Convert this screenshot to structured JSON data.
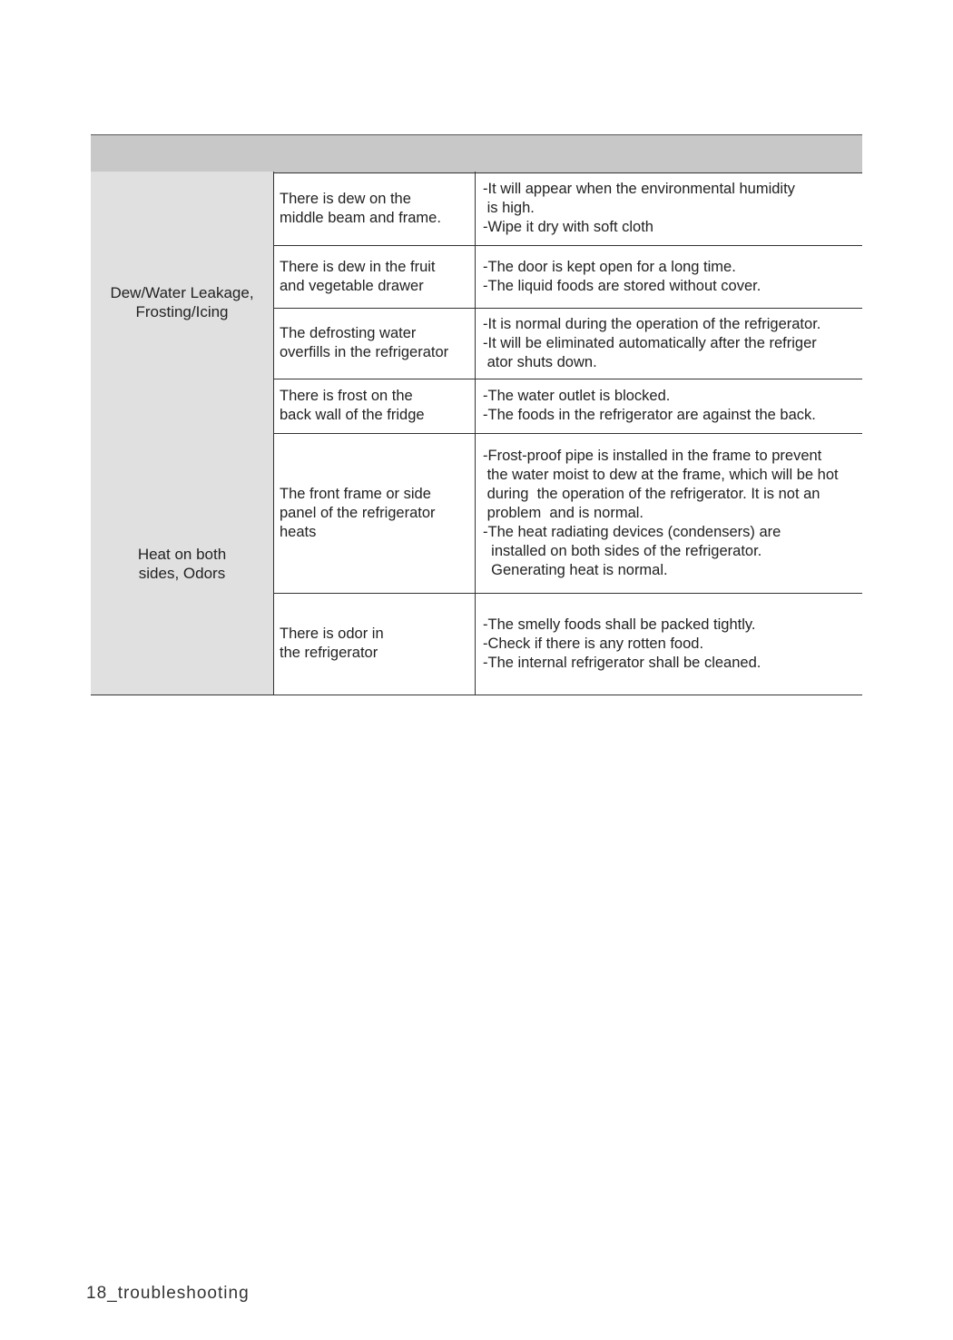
{
  "table": {
    "header": "",
    "groups": [
      {
        "category": [
          "Dew/Water Leakage,",
          "Frosting/Icing"
        ],
        "rows": [
          {
            "symptom": [
              "There is dew on the",
              "middle beam and frame."
            ],
            "solution": [
              "-It will appear when the environmental humidity",
              " is high.",
              "-Wipe it dry with soft cloth"
            ]
          },
          {
            "symptom": [
              "There is dew in the fruit",
              "and vegetable drawer"
            ],
            "solution": [
              "-The door is kept open for a long time.",
              "-The liquid foods are stored without cover."
            ]
          },
          {
            "symptom": [
              "The defrosting water",
              "overfills in the refrigerator"
            ],
            "solution": [
              "-It is normal during the operation of the refrigerator.",
              "-It will be eliminated automatically after the refriger",
              " ator shuts down."
            ]
          },
          {
            "symptom": [
              "There is frost on the",
              "back wall of the fridge"
            ],
            "solution": [
              "-The water outlet is blocked.",
              "-The foods in the refrigerator are against the back."
            ]
          }
        ]
      },
      {
        "category": [
          "Heat on both",
          "sides, Odors"
        ],
        "rows": [
          {
            "symptom": [
              "The front frame or side",
              "panel of the refrigerator",
              "heats"
            ],
            "solution": [
              "-Frost-proof pipe is installed in the frame to prevent",
              " the water moist to dew at the frame, which will be hot",
              " during  the operation of the refrigerator. It is not an",
              " problem  and is normal.",
              "-The heat radiating devices (condensers) are",
              "  installed on both sides of the refrigerator.",
              "  Generating heat is normal."
            ]
          },
          {
            "symptom": [
              "There is odor in",
              "the refrigerator"
            ],
            "solution": [
              "-The smelly foods shall be packed tightly.",
              "-Check if there is any rotten food.",
              "-The internal refrigerator shall be cleaned."
            ]
          }
        ]
      }
    ]
  },
  "footer": "18_troubleshooting"
}
